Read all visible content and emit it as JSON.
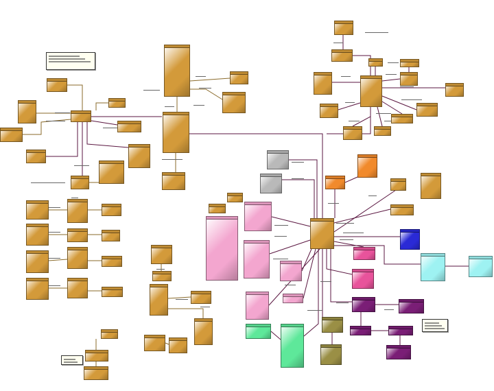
{
  "colors": {
    "gold": "#d39a3a",
    "pink": "#f3a6cf",
    "pink_dark": "#e8539b",
    "orange": "#f18a2c",
    "gray": "#b9b9b9",
    "blue": "#2a2ad6",
    "cyan": "#9ef2f2",
    "green": "#5ee89a",
    "purple": "#7a1e76",
    "olive": "#9a8f45",
    "connector_dark": "#5a1640",
    "connector_brown": "#8a6a2a"
  }
}
